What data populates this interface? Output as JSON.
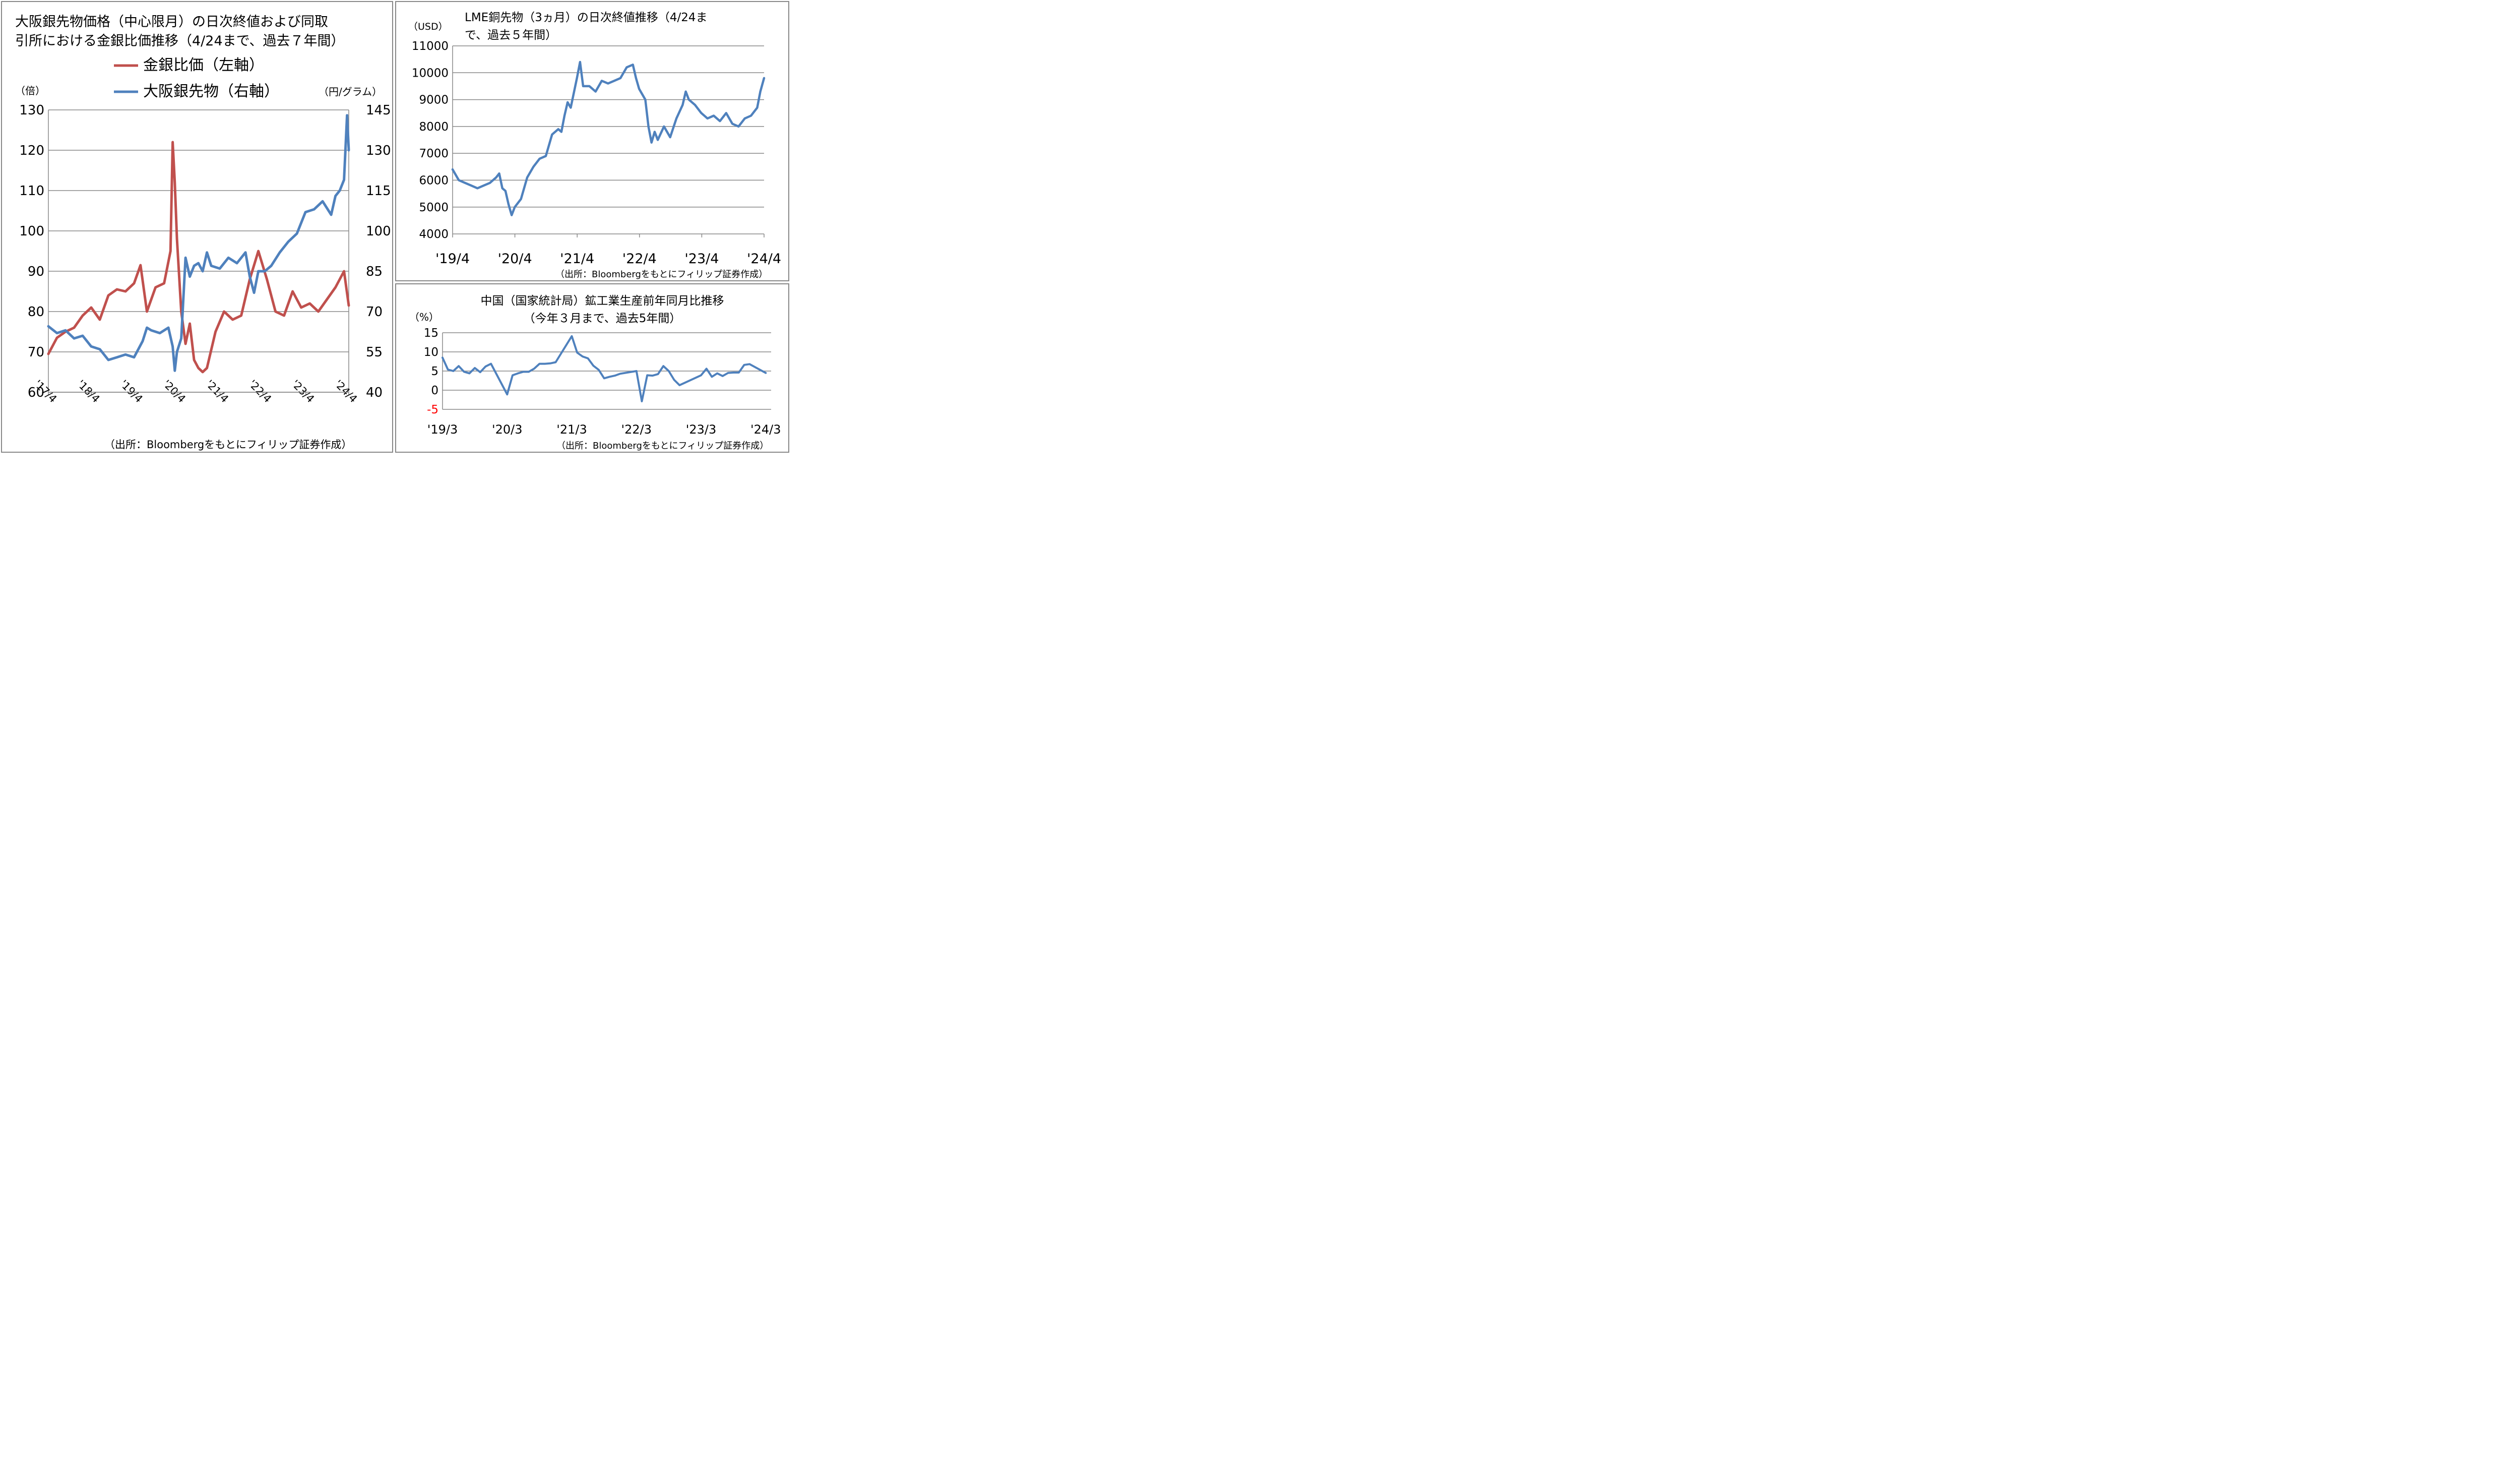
{
  "chart_data": [
    {
      "id": "osaka-silver",
      "type": "line",
      "title": "大阪銀先物価格（中心限月）の日次終値および同取引所における金銀比価推移（4/24まで、過去７年間）",
      "title_lines": [
        "大阪銀先物価格（中心限月）の日次終値および同取",
        "引所における金銀比価推移（4/24まで、過去７年間）"
      ],
      "y_left_unit": "（倍）",
      "y_right_unit": "（円/グラム）",
      "ylim_left": [
        60,
        130
      ],
      "ylim_right": [
        40,
        145
      ],
      "y_ticks_left": [
        60,
        70,
        80,
        90,
        100,
        110,
        120,
        130
      ],
      "y_ticks_right": [
        40,
        55,
        70,
        85,
        100,
        115,
        130,
        145
      ],
      "x_tick_labels": [
        "'17/4",
        "'18/4",
        "'19/4",
        "'20/4",
        "'21/4",
        "'22/4",
        "'23/4",
        "'24/4"
      ],
      "grid": true,
      "legend_position": "top",
      "source": "（出所：Bloombergをもとにフィリップ証券作成）",
      "series": [
        {
          "name": "金銀比価（左軸）",
          "axis": "left",
          "color": "#C0504D",
          "x": [
            2017.3,
            2017.5,
            2017.7,
            2017.9,
            2018.1,
            2018.3,
            2018.5,
            2018.7,
            2018.9,
            2019.1,
            2019.3,
            2019.45,
            2019.6,
            2019.8,
            2020.0,
            2020.15,
            2020.2,
            2020.25,
            2020.3,
            2020.4,
            2020.5,
            2020.6,
            2020.7,
            2020.8,
            2020.9,
            2021.0,
            2021.2,
            2021.4,
            2021.6,
            2021.8,
            2022.0,
            2022.2,
            2022.4,
            2022.6,
            2022.8,
            2023.0,
            2023.2,
            2023.4,
            2023.6,
            2023.8,
            2024.0,
            2024.2,
            2024.31
          ],
          "values": [
            69.5,
            73.5,
            75,
            76,
            79,
            81,
            78,
            84,
            85.5,
            85,
            87,
            91.5,
            80,
            86,
            87,
            95,
            122,
            112,
            98,
            80,
            72,
            77,
            68,
            66,
            65,
            66,
            75,
            80,
            78,
            79,
            88,
            95,
            88,
            80,
            79,
            85,
            81,
            82,
            80,
            83,
            86,
            90,
            81.5
          ]
        },
        {
          "name": "大阪銀先物（右軸）",
          "axis": "right",
          "color": "#4F81BD",
          "x": [
            2017.3,
            2017.5,
            2017.7,
            2017.9,
            2018.1,
            2018.3,
            2018.5,
            2018.7,
            2018.9,
            2019.1,
            2019.3,
            2019.5,
            2019.6,
            2019.7,
            2019.9,
            2020.1,
            2020.2,
            2020.25,
            2020.3,
            2020.4,
            2020.5,
            2020.6,
            2020.7,
            2020.8,
            2020.9,
            2021.0,
            2021.1,
            2021.3,
            2021.5,
            2021.7,
            2021.9,
            2022.0,
            2022.1,
            2022.2,
            2022.35,
            2022.5,
            2022.7,
            2022.9,
            2023.1,
            2023.3,
            2023.5,
            2023.7,
            2023.9,
            2024.0,
            2024.1,
            2024.2,
            2024.27,
            2024.31
          ],
          "values": [
            64.5,
            62,
            63,
            60,
            61,
            57,
            56,
            52,
            53,
            54,
            53,
            59,
            64,
            63,
            62,
            64,
            57,
            48,
            55,
            60,
            90,
            83,
            87,
            88,
            85,
            92,
            87,
            86,
            90,
            88,
            92,
            83,
            77,
            85,
            85,
            87,
            92,
            96,
            99,
            107,
            108,
            111,
            106,
            113,
            115,
            119,
            143,
            130
          ]
        }
      ]
    },
    {
      "id": "lme-copper",
      "type": "line",
      "title": "LME銅先物（3ヵ月）の日次終値推移（4/24まで、過去５年間）",
      "title_lines": [
        "LME銅先物（3ヵ月）の日次終値推移（4/24ま",
        "で、過去５年間）"
      ],
      "y_unit": "（USD）",
      "ylim": [
        4000,
        11000
      ],
      "y_ticks": [
        4000,
        5000,
        6000,
        7000,
        8000,
        9000,
        10000,
        11000
      ],
      "x_tick_labels": [
        "'19/4",
        "'20/4",
        "'21/4",
        "'22/4",
        "'23/4",
        "'24/4"
      ],
      "grid": true,
      "source": "（出所：Bloombergをもとにフィリップ証券作成）",
      "series": [
        {
          "color": "#4F81BD",
          "x": [
            2019.3,
            2019.4,
            2019.5,
            2019.6,
            2019.7,
            2019.8,
            2019.9,
            2020.0,
            2020.05,
            2020.1,
            2020.15,
            2020.2,
            2020.25,
            2020.3,
            2020.4,
            2020.5,
            2020.6,
            2020.7,
            2020.8,
            2020.9,
            2021.0,
            2021.05,
            2021.1,
            2021.15,
            2021.2,
            2021.3,
            2021.35,
            2021.4,
            2021.5,
            2021.6,
            2021.7,
            2021.8,
            2021.9,
            2022.0,
            2022.1,
            2022.2,
            2022.25,
            2022.3,
            2022.4,
            2022.45,
            2022.5,
            2022.55,
            2022.6,
            2022.7,
            2022.8,
            2022.9,
            2023.0,
            2023.05,
            2023.1,
            2023.2,
            2023.3,
            2023.4,
            2023.5,
            2023.6,
            2023.7,
            2023.8,
            2023.9,
            2024.0,
            2024.1,
            2024.2,
            2024.25,
            2024.31
          ],
          "values": [
            6400,
            6000,
            5900,
            5800,
            5700,
            5800,
            5900,
            6100,
            6250,
            5700,
            5600,
            5100,
            4700,
            5000,
            5300,
            6100,
            6500,
            6800,
            6900,
            7700,
            7900,
            7800,
            8400,
            8900,
            8700,
            9800,
            10400,
            9500,
            9500,
            9300,
            9700,
            9600,
            9700,
            9800,
            10200,
            10300,
            9800,
            9400,
            9000,
            8000,
            7400,
            7800,
            7500,
            8000,
            7600,
            8300,
            8800,
            9300,
            9000,
            8800,
            8500,
            8300,
            8400,
            8200,
            8500,
            8100,
            8000,
            8300,
            8400,
            8700,
            9300,
            9800
          ]
        }
      ]
    },
    {
      "id": "china-mining",
      "type": "line",
      "title": "中国（国家統計局）鉱工業生産前年同月比推移（今年３月まで、過去5年間）",
      "title_lines": [
        "中国（国家統計局）鉱工業生産前年同月比推移",
        "（今年３月まで、過去5年間）"
      ],
      "y_unit": "（%）",
      "ylim": [
        -5,
        15
      ],
      "y_ticks": [
        -5,
        0,
        5,
        10,
        15
      ],
      "negative_tick_color": "#FF0000",
      "x_tick_labels": [
        "'19/3",
        "'20/3",
        "'21/3",
        "'22/3",
        "'23/3",
        "'24/3"
      ],
      "grid": true,
      "source": "（出所：Bloombergをもとにフィリップ証券作成）",
      "series": [
        {
          "color": "#4F81BD",
          "x": [
            0,
            1,
            2,
            3,
            4,
            5,
            6,
            7,
            8,
            9,
            10,
            11,
            12,
            13,
            14,
            15,
            16,
            17,
            18,
            19,
            20,
            21,
            22,
            23,
            24,
            25,
            26,
            27,
            28,
            29,
            30,
            31,
            32,
            33,
            34,
            35,
            36,
            37,
            38,
            39,
            40,
            41,
            42,
            43,
            44,
            45,
            46,
            47,
            48,
            49,
            50,
            51,
            52,
            53,
            54,
            55,
            56,
            57,
            58,
            59,
            60
          ],
          "values": [
            8.5,
            5.4,
            5,
            6.3,
            4.8,
            4.4,
            5.8,
            4.7,
            6.2,
            6.9,
            null,
            null,
            -1.1,
            3.9,
            4.4,
            4.8,
            4.8,
            5.6,
            6.9,
            6.9,
            7,
            7.3,
            null,
            null,
            14.1,
            9.8,
            8.8,
            8.3,
            6.4,
            5.3,
            3.1,
            3.5,
            3.8,
            4.3,
            null,
            null,
            5,
            -2.9,
            3.9,
            3.8,
            4.2,
            6.3,
            5,
            2.7,
            1.3,
            null,
            null,
            null,
            3.9,
            5.6,
            3.5,
            4.4,
            3.7,
            4.5,
            4.6,
            4.6,
            6.6,
            6.8,
            null,
            null,
            4.5
          ]
        }
      ]
    }
  ],
  "legend": {
    "gold_silver": "金銀比価（左軸）",
    "osaka_silver": "大阪銀先物（右軸）"
  }
}
